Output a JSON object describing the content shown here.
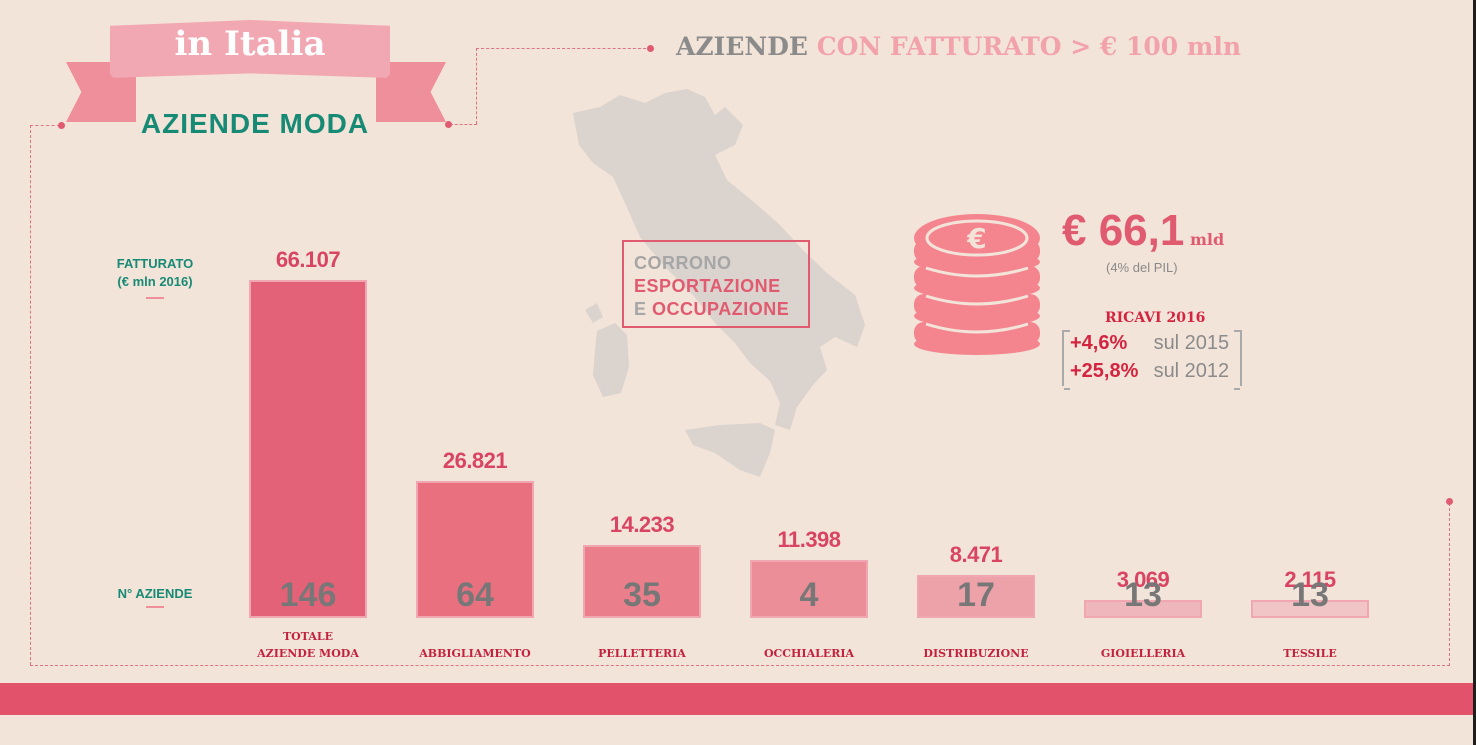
{
  "banner": {
    "title": "in Italia",
    "subtitle": "AZIENDE MODA"
  },
  "headline": {
    "part1": "AZIENDE",
    "part2": "CON FATTURATO > € 100 mln"
  },
  "callout": {
    "line1": "CORRONO",
    "line2": "ESPORTAZIONE",
    "line3_a": "E",
    "line3_b": "OCCUPAZIONE"
  },
  "summary": {
    "value": "€ 66,1",
    "unit": "mld",
    "note": "(4% del PIL)",
    "ricavi_title": "RICAVI 2016",
    "rows": [
      {
        "pct": "+4,6%",
        "label": "sul 2015"
      },
      {
        "pct": "+25,8%",
        "label": "sul 2012"
      }
    ]
  },
  "labels": {
    "fatturato_line1": "FATTURATO",
    "fatturato_line2": "(€ mln 2016)",
    "aziende": "N° AZIENDE"
  },
  "colors": {
    "accent": "#e05b70",
    "teal": "#178a75",
    "background": "#f3e4d9",
    "footer": "#e2526b"
  },
  "chart_data": {
    "type": "bar",
    "categories": [
      "TOTALE AZIENDE MODA",
      "ABBIGLIAMENTO",
      "PELLETTERIA",
      "OCCHIALERIA",
      "DISTRIBUZIONE",
      "GIOIELLERIA",
      "TESSILE"
    ],
    "category_lines": [
      [
        "TOTALE",
        "AZIENDE MODA"
      ],
      [
        "ABBIGLIAMENTO"
      ],
      [
        "PELLETTERIA"
      ],
      [
        "OCCHIALERIA"
      ],
      [
        "DISTRIBUZIONE"
      ],
      [
        "GIOIELLERIA"
      ],
      [
        "TESSILE"
      ]
    ],
    "values": [
      66107,
      26821,
      14233,
      11398,
      8471,
      3069,
      2115
    ],
    "value_labels": [
      "66.107",
      "26.821",
      "14.233",
      "11.398",
      "8.471",
      "3.069",
      "2.115"
    ],
    "counts": [
      146,
      64,
      35,
      4,
      17,
      13,
      13
    ],
    "bar_colors": [
      "#e46277",
      "#e8707f",
      "#ea7e8b",
      "#eb8e98",
      "#eda2aa",
      "#efb6bb",
      "#f1c4c6"
    ],
    "ylim": [
      0,
      66107
    ]
  }
}
